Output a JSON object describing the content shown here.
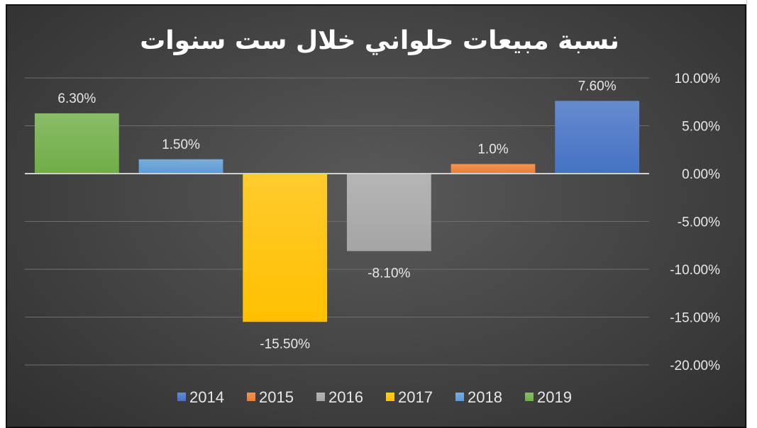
{
  "chart_data": {
    "type": "bar",
    "title": "نسبة مبيعات حلواني خلال ست سنوات",
    "xlabel": "",
    "ylabel": "",
    "ylim": [
      -20,
      10
    ],
    "y_axis_side": "right",
    "y_ticks": [
      10,
      5,
      0,
      -5,
      -10,
      -15,
      -20
    ],
    "y_tick_labels": [
      "10.00%",
      "5.00%",
      "0.00%",
      "-5.00%",
      "-10.00%",
      "-15.00%",
      "-20.00%"
    ],
    "grid": true,
    "legend_position": "bottom",
    "category_order": "right-to-left",
    "categories": [
      "2014",
      "2015",
      "2016",
      "2017",
      "2018",
      "2019"
    ],
    "values": [
      7.6,
      1.0,
      -8.1,
      -15.5,
      1.5,
      6.3
    ],
    "data_labels": [
      "7.60%",
      "1.0%",
      "-8.10%",
      "-15.50%",
      "1.50%",
      "6.30%"
    ],
    "colors": {
      "2014": "#4472c4",
      "2015": "#ed7d31",
      "2016": "#a5a5a5",
      "2017": "#ffc000",
      "2018": "#5b9bd5",
      "2019": "#70ad47"
    }
  }
}
